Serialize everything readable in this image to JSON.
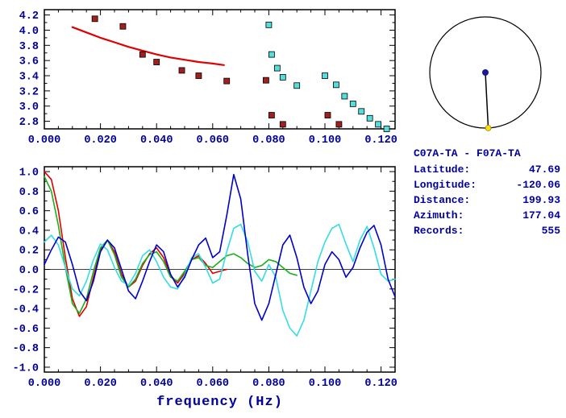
{
  "info_panel": {
    "station_pair": "C07A-TA - F07A-TA",
    "fields": [
      {
        "label": "Latitude:",
        "value": "47.69"
      },
      {
        "label": "Longitude:",
        "value": "-120.06"
      },
      {
        "label": "Distance:",
        "value": "199.93"
      },
      {
        "label": "Azimuth:",
        "value": "177.04"
      },
      {
        "label": "Records:",
        "value": "555"
      }
    ]
  },
  "azimuth_circle": {
    "azimuth_deg": 177.04,
    "center_dot_color": "#1a1a8c",
    "edge_dot_color": "#ffdf00",
    "circle_color": "#000000"
  },
  "colors": {
    "text": "#00009c",
    "axis": "#000000",
    "background": "#ffffff"
  },
  "chart_data": [
    {
      "type": "scatter",
      "title": "",
      "xlabel": "",
      "ylabel": "",
      "xlim": [
        0,
        0.125
      ],
      "ylim": [
        2.7,
        4.27
      ],
      "grid": false,
      "xtick_values": [
        0.0,
        0.02,
        0.04,
        0.06,
        0.08,
        0.1,
        0.12
      ],
      "xtick_labels": [
        "0.000",
        "0.020",
        "0.040",
        "0.060",
        "0.080",
        "0.100",
        "0.120"
      ],
      "ytick_values": [
        2.8,
        3.0,
        3.2,
        3.4,
        3.6,
        3.8,
        4.0,
        4.2
      ],
      "ytick_labels": [
        "2.8",
        "3.0",
        "3.2",
        "3.4",
        "3.6",
        "3.8",
        "4.0",
        "4.2"
      ],
      "series": [
        {
          "name": "reference-dispersion-curve",
          "type": "line",
          "color": "#e00000",
          "points": [
            [
              0.01,
              4.04
            ],
            [
              0.015,
              3.97
            ],
            [
              0.02,
              3.9
            ],
            [
              0.025,
              3.84
            ],
            [
              0.03,
              3.78
            ],
            [
              0.035,
              3.73
            ],
            [
              0.04,
              3.68
            ],
            [
              0.045,
              3.64
            ],
            [
              0.05,
              3.61
            ],
            [
              0.055,
              3.58
            ],
            [
              0.06,
              3.56
            ],
            [
              0.064,
              3.54
            ]
          ]
        },
        {
          "name": "dark-red-velocity-picks",
          "type": "scatter",
          "marker": "square",
          "color": "#a02020",
          "points": [
            [
              0.018,
              4.15
            ],
            [
              0.028,
              4.05
            ],
            [
              0.035,
              3.68
            ],
            [
              0.04,
              3.58
            ],
            [
              0.049,
              3.47
            ],
            [
              0.055,
              3.4
            ],
            [
              0.065,
              3.33
            ],
            [
              0.079,
              3.34
            ],
            [
              0.081,
              2.88
            ],
            [
              0.085,
              2.76
            ],
            [
              0.101,
              2.88
            ],
            [
              0.105,
              2.76
            ]
          ]
        },
        {
          "name": "cyan-velocity-picks",
          "type": "scatter",
          "marker": "square",
          "color": "#55dddd",
          "points": [
            [
              0.08,
              4.07
            ],
            [
              0.081,
              3.68
            ],
            [
              0.083,
              3.5
            ],
            [
              0.085,
              3.38
            ],
            [
              0.09,
              3.27
            ],
            [
              0.1,
              3.4
            ],
            [
              0.104,
              3.28
            ],
            [
              0.107,
              3.13
            ],
            [
              0.11,
              3.03
            ],
            [
              0.113,
              2.93
            ],
            [
              0.116,
              2.84
            ],
            [
              0.119,
              2.76
            ],
            [
              0.122,
              2.7
            ]
          ]
        }
      ]
    },
    {
      "type": "line",
      "title": "",
      "xlabel": "frequency (Hz)",
      "ylabel": "",
      "xlim": [
        0,
        0.125
      ],
      "ylim": [
        -1.05,
        1.05
      ],
      "grid": false,
      "zero_line": true,
      "xtick_values": [
        0.0,
        0.02,
        0.04,
        0.06,
        0.08,
        0.1,
        0.12
      ],
      "xtick_labels": [
        "0.000",
        "0.020",
        "0.040",
        "0.060",
        "0.080",
        "0.100",
        "0.120"
      ],
      "ytick_values": [
        -1.0,
        -0.8,
        -0.6,
        -0.4,
        -0.2,
        0.0,
        0.2,
        0.4,
        0.6,
        0.8,
        1.0
      ],
      "ytick_labels": [
        "-1.0",
        "-0.8",
        "-0.6",
        "-0.4",
        "-0.2",
        "0.0",
        "0.2",
        "0.4",
        "0.6",
        "0.8",
        "1.0"
      ],
      "series": [
        {
          "name": "red-correlation-trace",
          "color": "#e00000",
          "x_start": 0,
          "x_step": 0.0025,
          "y": [
            1.0,
            0.92,
            0.6,
            0.12,
            -0.3,
            -0.48,
            -0.38,
            -0.08,
            0.2,
            0.3,
            0.18,
            -0.05,
            -0.18,
            -0.12,
            0.04,
            0.16,
            0.22,
            0.12,
            -0.06,
            -0.14,
            -0.04,
            0.1,
            0.14,
            0.06,
            -0.04,
            -0.02,
            0.0
          ]
        },
        {
          "name": "green-correlation-trace",
          "color": "#18b018",
          "x_start": 0,
          "x_step": 0.0025,
          "y": [
            0.95,
            0.8,
            0.45,
            0.02,
            -0.35,
            -0.45,
            -0.3,
            -0.02,
            0.22,
            0.3,
            0.15,
            -0.08,
            -0.18,
            -0.1,
            0.06,
            0.15,
            0.18,
            0.08,
            -0.08,
            -0.12,
            -0.02,
            0.1,
            0.12,
            0.04,
            0.02,
            0.08,
            0.14,
            0.16,
            0.12,
            0.06,
            0.02,
            0.04,
            0.1,
            0.08,
            0.02,
            -0.04,
            -0.06
          ]
        },
        {
          "name": "cyan-correlation-trace",
          "color": "#33dde6",
          "x_start": 0,
          "x_step": 0.0025,
          "y": [
            0.28,
            0.35,
            0.25,
            0.02,
            -0.2,
            -0.27,
            -0.12,
            0.1,
            0.26,
            0.2,
            0.02,
            -0.12,
            -0.16,
            -0.04,
            0.14,
            0.2,
            0.08,
            -0.08,
            -0.18,
            -0.2,
            -0.06,
            0.12,
            0.16,
            0.02,
            -0.14,
            -0.1,
            0.18,
            0.42,
            0.46,
            0.28,
            -0.02,
            -0.12,
            0.05,
            -0.08,
            -0.42,
            -0.6,
            -0.68,
            -0.52,
            -0.22,
            0.08,
            0.28,
            0.42,
            0.46,
            0.26,
            0.08,
            0.3,
            0.44,
            0.22,
            -0.05,
            -0.12,
            -0.1
          ]
        },
        {
          "name": "blue-correlation-trace",
          "color": "#0000cc",
          "x_start": 0,
          "x_step": 0.0025,
          "y": [
            0.05,
            0.2,
            0.33,
            0.28,
            0.05,
            -0.22,
            -0.32,
            -0.12,
            0.18,
            0.3,
            0.22,
            0.0,
            -0.22,
            -0.3,
            -0.12,
            0.08,
            0.25,
            0.18,
            -0.05,
            -0.18,
            -0.08,
            0.1,
            0.25,
            0.32,
            0.12,
            0.18,
            0.55,
            0.97,
            0.72,
            0.15,
            -0.35,
            -0.52,
            -0.35,
            -0.05,
            0.25,
            0.35,
            0.12,
            -0.18,
            -0.35,
            -0.22,
            0.05,
            0.18,
            0.1,
            -0.08,
            0.02,
            0.22,
            0.38,
            0.45,
            0.25,
            -0.1,
            -0.28
          ]
        }
      ]
    }
  ]
}
